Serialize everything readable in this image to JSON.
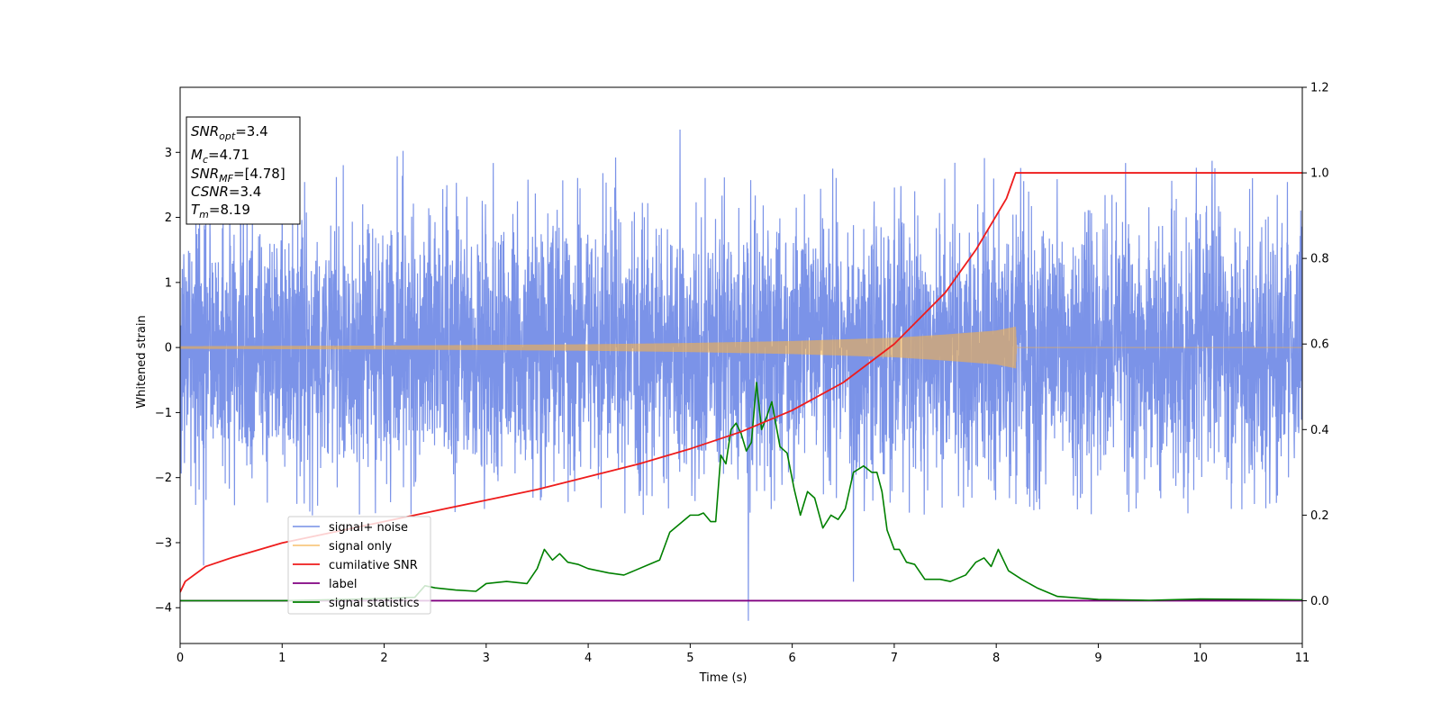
{
  "chart_data": {
    "type": "line",
    "xlabel": "Time (s)",
    "ylabel": "Whitened strain",
    "xlim": [
      0,
      11
    ],
    "ylim_left": [
      -4.55,
      4.0
    ],
    "ylim_right": [
      -0.1,
      1.2
    ],
    "x_ticks": [
      "0",
      "1",
      "2",
      "3",
      "4",
      "5",
      "6",
      "7",
      "8",
      "9",
      "10",
      "11"
    ],
    "y_left_ticks": [
      "−4",
      "−3",
      "−2",
      "−1",
      "0",
      "1",
      "2",
      "3"
    ],
    "y_left_tick_values": [
      -4,
      -3,
      -2,
      -1,
      0,
      1,
      2,
      3
    ],
    "y_right_ticks": [
      "0.0",
      "0.2",
      "0.4",
      "0.6",
      "0.8",
      "1.0",
      "1.2"
    ],
    "y_right_tick_values": [
      0.0,
      0.2,
      0.4,
      0.6,
      0.8,
      1.0,
      1.2
    ],
    "grid": false,
    "legend_position": "lower-left",
    "info_box": {
      "snr_opt": {
        "base": "SNR",
        "sub": "opt",
        "value": "=3.4"
      },
      "mc": {
        "base": "M",
        "sub": "c",
        "value": "=4.71"
      },
      "snr_mf": {
        "base": "SNR",
        "sub": "MF",
        "value": "=[4.78]"
      },
      "csnr": {
        "base": "CSNR",
        "value": "=3.4"
      },
      "tm": {
        "base": "T",
        "sub": "m",
        "value": "=8.19"
      }
    },
    "series": [
      {
        "name": "signal+ noise",
        "axis": "left",
        "color": "#7b93e8",
        "kind": "noise",
        "x_range": [
          0,
          11
        ],
        "std": 1.0,
        "typical_range": [
          -2.6,
          3.1
        ],
        "extremes": [
          {
            "x": 0.23,
            "y": -3.35
          },
          {
            "x": 5.57,
            "y": -4.2
          },
          {
            "x": 4.9,
            "y": 3.35
          },
          {
            "x": 6.6,
            "y": -3.6
          }
        ]
      },
      {
        "name": "signal only",
        "axis": "left",
        "color": "#f5b04a",
        "kind": "chirp",
        "x_range": [
          0,
          11
        ],
        "merger_time": 8.19,
        "envelope": {
          "t": [
            0,
            1,
            2,
            3,
            4,
            5,
            6,
            7,
            7.5,
            8.0,
            8.19,
            8.2
          ],
          "amp": [
            0.02,
            0.025,
            0.03,
            0.04,
            0.05,
            0.07,
            0.1,
            0.15,
            0.2,
            0.26,
            0.32,
            0.0
          ]
        }
      },
      {
        "name": "cumilative SNR",
        "axis": "right",
        "color": "#ee1c1c",
        "x": [
          0,
          0.05,
          0.25,
          0.5,
          1,
          1.5,
          2,
          2.5,
          3,
          3.5,
          4,
          4.5,
          5,
          5.5,
          6,
          6.5,
          7,
          7.5,
          7.8,
          8.0,
          8.1,
          8.19,
          8.2,
          11
        ],
        "y": [
          0.02,
          0.045,
          0.08,
          0.1,
          0.135,
          0.16,
          0.185,
          0.21,
          0.235,
          0.26,
          0.29,
          0.32,
          0.355,
          0.395,
          0.445,
          0.51,
          0.6,
          0.72,
          0.82,
          0.9,
          0.94,
          1.0,
          1.0,
          1.0
        ]
      },
      {
        "name": "label",
        "axis": "right",
        "color": "#800080",
        "x": [
          0,
          11
        ],
        "y": [
          0.0,
          0.0
        ]
      },
      {
        "name": "signal statistics",
        "axis": "right",
        "color": "#008000",
        "x": [
          0,
          1,
          2,
          2.3,
          2.4,
          2.5,
          2.7,
          2.9,
          3.0,
          3.2,
          3.4,
          3.5,
          3.57,
          3.65,
          3.72,
          3.8,
          3.9,
          4.0,
          4.2,
          4.35,
          4.45,
          4.6,
          4.7,
          4.8,
          4.9,
          5.0,
          5.08,
          5.13,
          5.2,
          5.25,
          5.3,
          5.35,
          5.4,
          5.45,
          5.5,
          5.55,
          5.6,
          5.65,
          5.7,
          5.75,
          5.8,
          5.88,
          5.95,
          6.02,
          6.08,
          6.15,
          6.22,
          6.3,
          6.38,
          6.45,
          6.52,
          6.6,
          6.7,
          6.78,
          6.83,
          6.88,
          6.93,
          7.0,
          7.05,
          7.12,
          7.2,
          7.3,
          7.45,
          7.55,
          7.7,
          7.8,
          7.88,
          7.95,
          8.02,
          8.12,
          8.25,
          8.4,
          8.6,
          9.0,
          9.5,
          10.0,
          11.0
        ],
        "y": [
          0.0,
          0.0,
          0.005,
          0.008,
          0.035,
          0.03,
          0.025,
          0.022,
          0.04,
          0.045,
          0.04,
          0.075,
          0.12,
          0.095,
          0.11,
          0.09,
          0.085,
          0.075,
          0.065,
          0.06,
          0.07,
          0.085,
          0.095,
          0.16,
          0.18,
          0.2,
          0.2,
          0.205,
          0.185,
          0.185,
          0.34,
          0.32,
          0.4,
          0.415,
          0.39,
          0.35,
          0.37,
          0.51,
          0.4,
          0.43,
          0.465,
          0.36,
          0.345,
          0.26,
          0.2,
          0.255,
          0.24,
          0.17,
          0.2,
          0.19,
          0.215,
          0.3,
          0.315,
          0.3,
          0.3,
          0.255,
          0.165,
          0.12,
          0.12,
          0.09,
          0.085,
          0.05,
          0.05,
          0.045,
          0.06,
          0.09,
          0.1,
          0.08,
          0.12,
          0.07,
          0.05,
          0.03,
          0.01,
          0.003,
          0.001,
          0.004,
          0.002
        ]
      }
    ]
  }
}
